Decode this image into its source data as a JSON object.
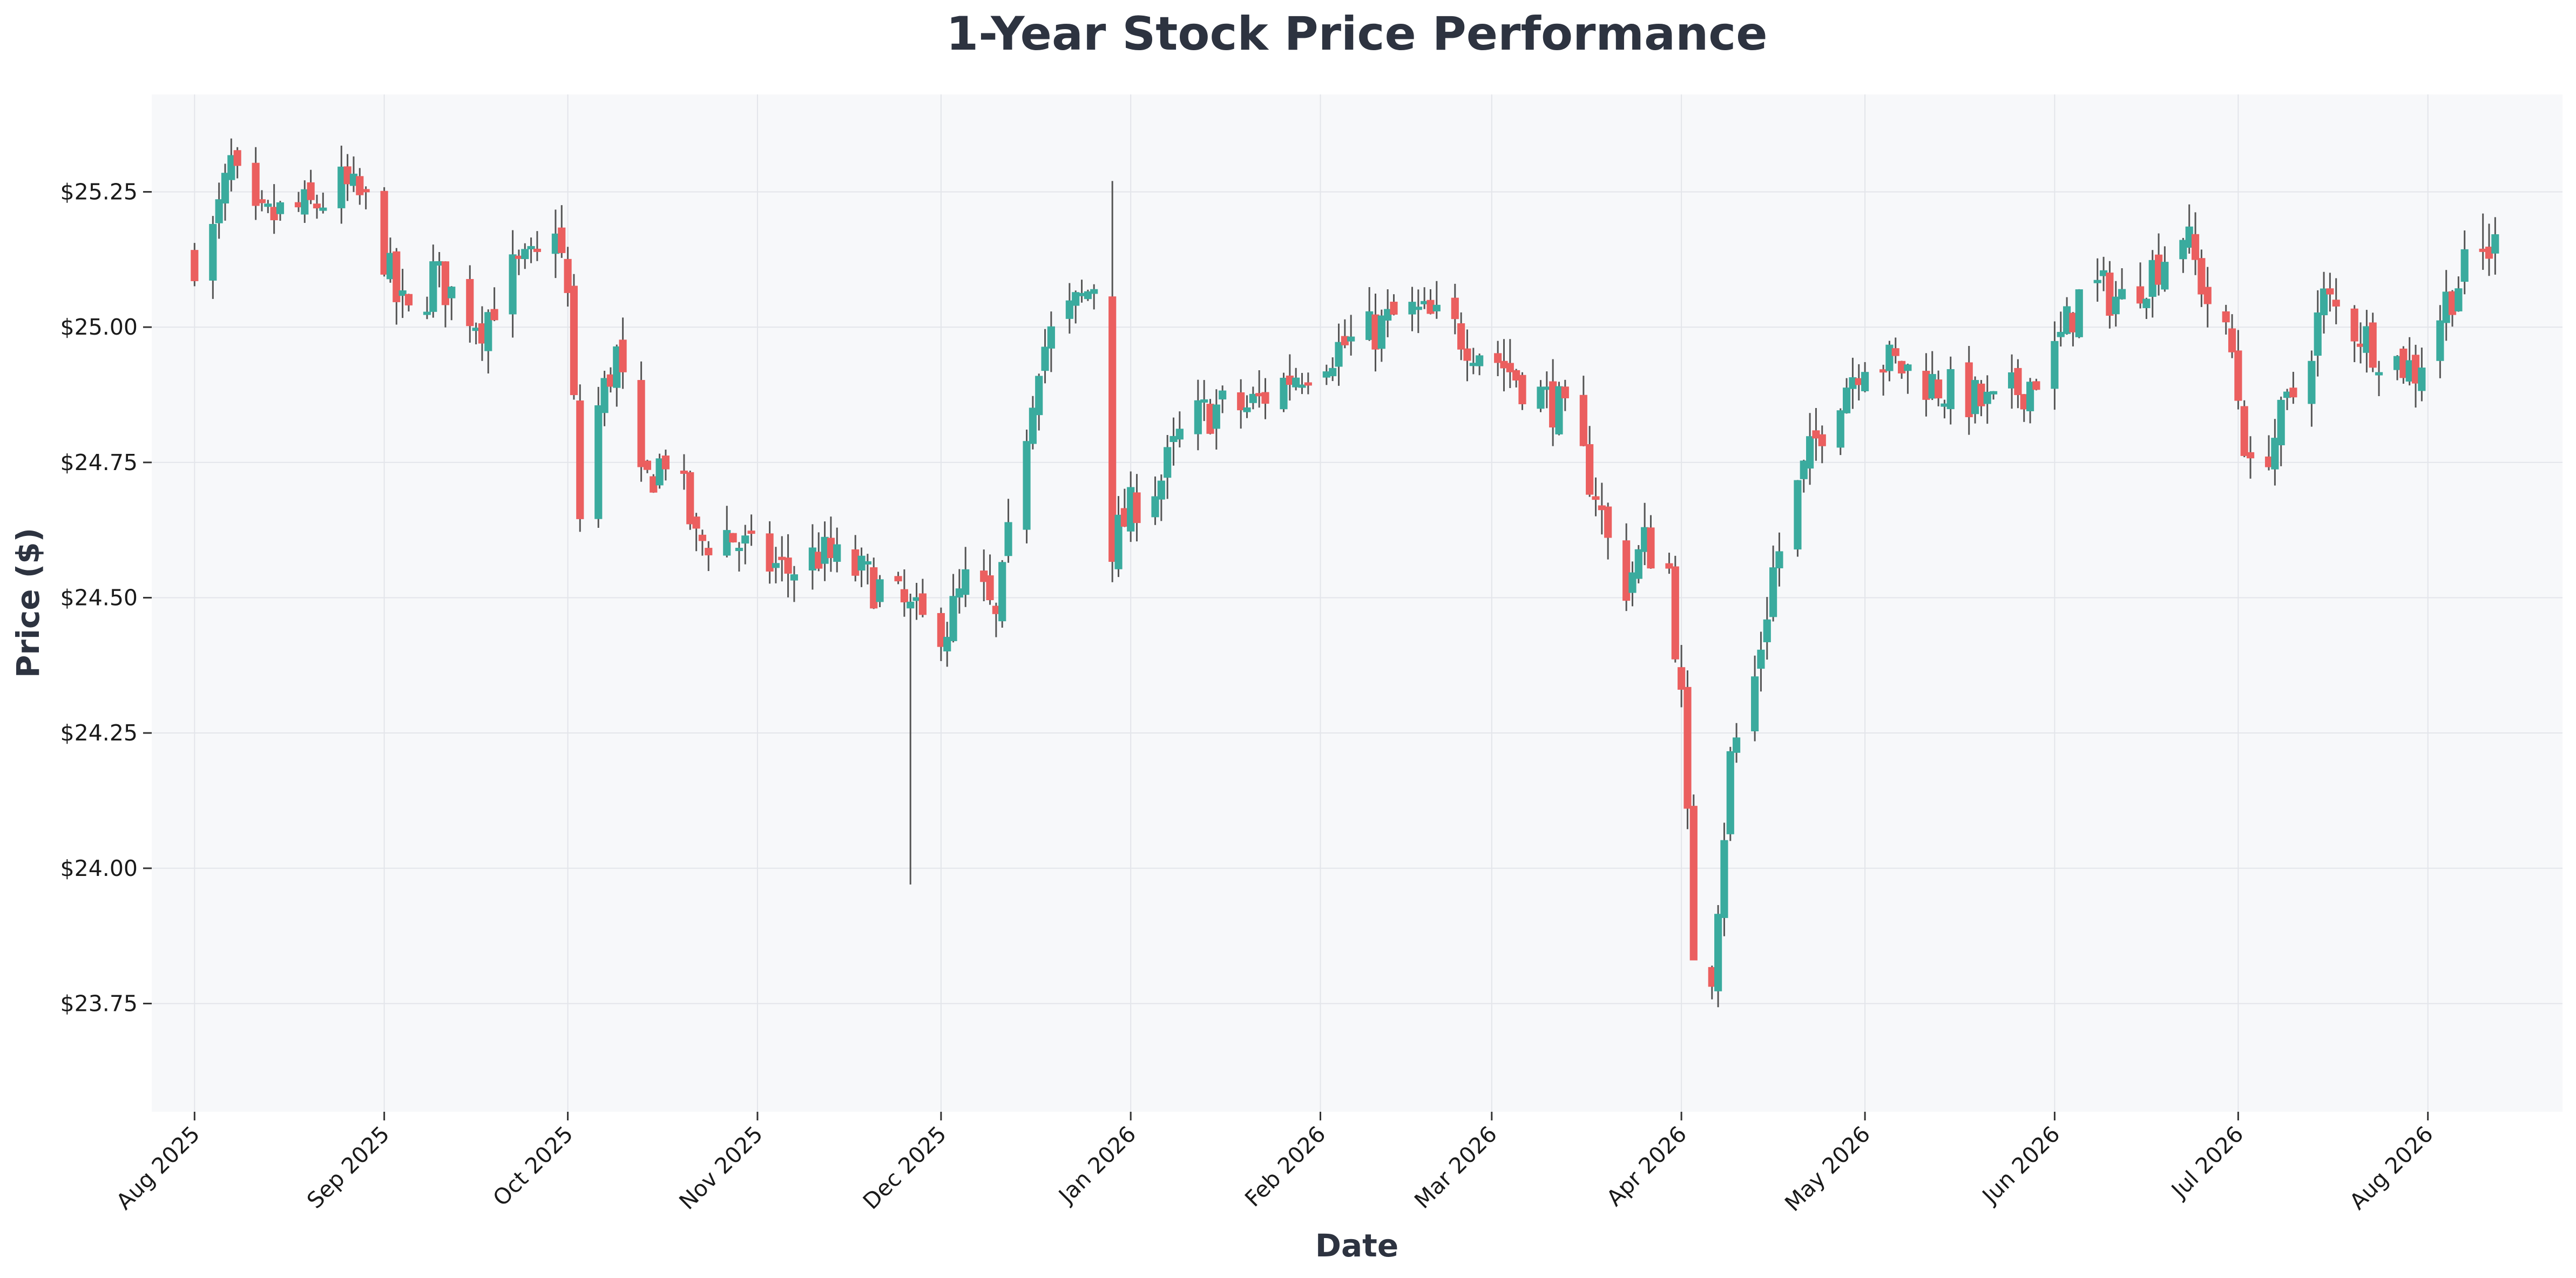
{
  "chart_data": {
    "type": "candlestick",
    "title": "1-Year Stock Price Performance",
    "xlabel": "Date",
    "ylabel": "Price ($)",
    "colors": {
      "up": "#3aab9e",
      "down": "#eb5f5f",
      "wick": "#555555",
      "plot_background": "#f7f8fa",
      "grid": "#e3e5ea",
      "text": "#2d3340"
    },
    "grid": true,
    "x_range": [
      "2025-07-25",
      "2026-08-23"
    ],
    "ylim": [
      23.55,
      25.43
    ],
    "x_ticks": [
      {
        "date": "2025-08-01",
        "label": "Aug 2025"
      },
      {
        "date": "2025-09-01",
        "label": "Sep 2025"
      },
      {
        "date": "2025-10-01",
        "label": "Oct 2025"
      },
      {
        "date": "2025-11-01",
        "label": "Nov 2025"
      },
      {
        "date": "2025-12-01",
        "label": "Dec 2025"
      },
      {
        "date": "2026-01-01",
        "label": "Jan 2026"
      },
      {
        "date": "2026-02-01",
        "label": "Feb 2026"
      },
      {
        "date": "2026-03-01",
        "label": "Mar 2026"
      },
      {
        "date": "2026-04-01",
        "label": "Apr 2026"
      },
      {
        "date": "2026-05-01",
        "label": "May 2026"
      },
      {
        "date": "2026-06-01",
        "label": "Jun 2026"
      },
      {
        "date": "2026-07-01",
        "label": "Jul 2026"
      },
      {
        "date": "2026-08-01",
        "label": "Aug 2026"
      }
    ],
    "y_ticks": [
      {
        "value": 23.75,
        "label": "$23.75"
      },
      {
        "value": 24.0,
        "label": "$24.00"
      },
      {
        "value": 24.25,
        "label": "$24.25"
      },
      {
        "value": 24.5,
        "label": "$24.50"
      },
      {
        "value": 24.75,
        "label": "$24.75"
      },
      {
        "value": 25.0,
        "label": "$25.00"
      },
      {
        "value": 25.25,
        "label": "$25.25"
      }
    ],
    "series_waypoints": [
      [
        "2025-08-01",
        25.13
      ],
      [
        "2025-08-04",
        25.17
      ],
      [
        "2025-08-07",
        25.3
      ],
      [
        "2025-08-10",
        25.18
      ],
      [
        "2025-08-15",
        25.21
      ],
      [
        "2025-08-20",
        25.22
      ],
      [
        "2025-08-25",
        25.26
      ],
      [
        "2025-08-30",
        25.22
      ],
      [
        "2025-09-03",
        25.05
      ],
      [
        "2025-09-06",
        25.0
      ],
      [
        "2025-09-09",
        25.1
      ],
      [
        "2025-09-13",
        25.05
      ],
      [
        "2025-09-17",
        25.01
      ],
      [
        "2025-09-22",
        25.1
      ],
      [
        "2025-09-26",
        25.12
      ],
      [
        "2025-09-29",
        25.2
      ],
      [
        "2025-10-01",
        25.05
      ],
      [
        "2025-10-03",
        24.65
      ],
      [
        "2025-10-06",
        24.85
      ],
      [
        "2025-10-09",
        24.95
      ],
      [
        "2025-10-13",
        24.7
      ],
      [
        "2025-10-18",
        24.78
      ],
      [
        "2025-10-22",
        24.6
      ],
      [
        "2025-10-27",
        24.62
      ],
      [
        "2025-11-01",
        24.57
      ],
      [
        "2025-11-06",
        24.55
      ],
      [
        "2025-11-11",
        24.58
      ],
      [
        "2025-11-17",
        24.55
      ],
      [
        "2025-11-23",
        24.5
      ],
      [
        "2025-11-28",
        24.45
      ],
      [
        "2025-12-02",
        24.45
      ],
      [
        "2025-12-06",
        24.55
      ],
      [
        "2025-12-10",
        24.45
      ],
      [
        "2025-12-14",
        24.75
      ],
      [
        "2025-12-17",
        24.95
      ],
      [
        "2025-12-20",
        25.0
      ],
      [
        "2025-12-24",
        25.05
      ],
      [
        "2025-12-27",
        25.1
      ],
      [
        "2025-12-29",
        24.6
      ],
      [
        "2026-01-02",
        24.68
      ],
      [
        "2026-01-06",
        24.72
      ],
      [
        "2026-01-10",
        24.82
      ],
      [
        "2026-01-15",
        24.85
      ],
      [
        "2026-01-20",
        24.85
      ],
      [
        "2026-01-26",
        24.9
      ],
      [
        "2026-02-01",
        24.95
      ],
      [
        "2026-02-08",
        24.98
      ],
      [
        "2026-02-15",
        25.03
      ],
      [
        "2026-02-22",
        25.0
      ],
      [
        "2026-03-01",
        24.95
      ],
      [
        "2026-03-06",
        24.9
      ],
      [
        "2026-03-12",
        24.85
      ],
      [
        "2026-03-18",
        24.7
      ],
      [
        "2026-03-22",
        24.5
      ],
      [
        "2026-03-26",
        24.6
      ],
      [
        "2026-03-30",
        24.55
      ],
      [
        "2026-04-01",
        24.3
      ],
      [
        "2026-04-03",
        23.85
      ],
      [
        "2026-04-05",
        23.68
      ],
      [
        "2026-04-07",
        23.95
      ],
      [
        "2026-04-09",
        24.2
      ],
      [
        "2026-04-13",
        24.35
      ],
      [
        "2026-04-16",
        24.55
      ],
      [
        "2026-04-20",
        24.7
      ],
      [
        "2026-04-25",
        24.85
      ],
      [
        "2026-05-01",
        24.95
      ],
      [
        "2026-05-08",
        24.92
      ],
      [
        "2026-05-15",
        24.88
      ],
      [
        "2026-05-22",
        24.85
      ],
      [
        "2026-05-28",
        24.9
      ],
      [
        "2026-06-01",
        24.95
      ],
      [
        "2026-06-06",
        25.08
      ],
      [
        "2026-06-12",
        25.05
      ],
      [
        "2026-06-18",
        25.12
      ],
      [
        "2026-06-22",
        25.18
      ],
      [
        "2026-06-26",
        25.05
      ],
      [
        "2026-06-30",
        24.95
      ],
      [
        "2026-07-03",
        24.72
      ],
      [
        "2026-07-07",
        24.8
      ],
      [
        "2026-07-11",
        24.9
      ],
      [
        "2026-07-15",
        25.05
      ],
      [
        "2026-07-20",
        25.0
      ],
      [
        "2026-07-25",
        24.95
      ],
      [
        "2026-07-30",
        24.92
      ],
      [
        "2026-08-04",
        25.05
      ],
      [
        "2026-08-08",
        25.12
      ],
      [
        "2026-08-12",
        25.15
      ]
    ],
    "notable_bars": [
      {
        "date": "2025-11-26",
        "low": 23.97
      },
      {
        "date": "2025-12-29",
        "high": 25.27
      },
      {
        "date": "2026-04-05",
        "low": 23.62
      },
      {
        "date": "2026-08-10",
        "high": 25.21
      }
    ]
  }
}
